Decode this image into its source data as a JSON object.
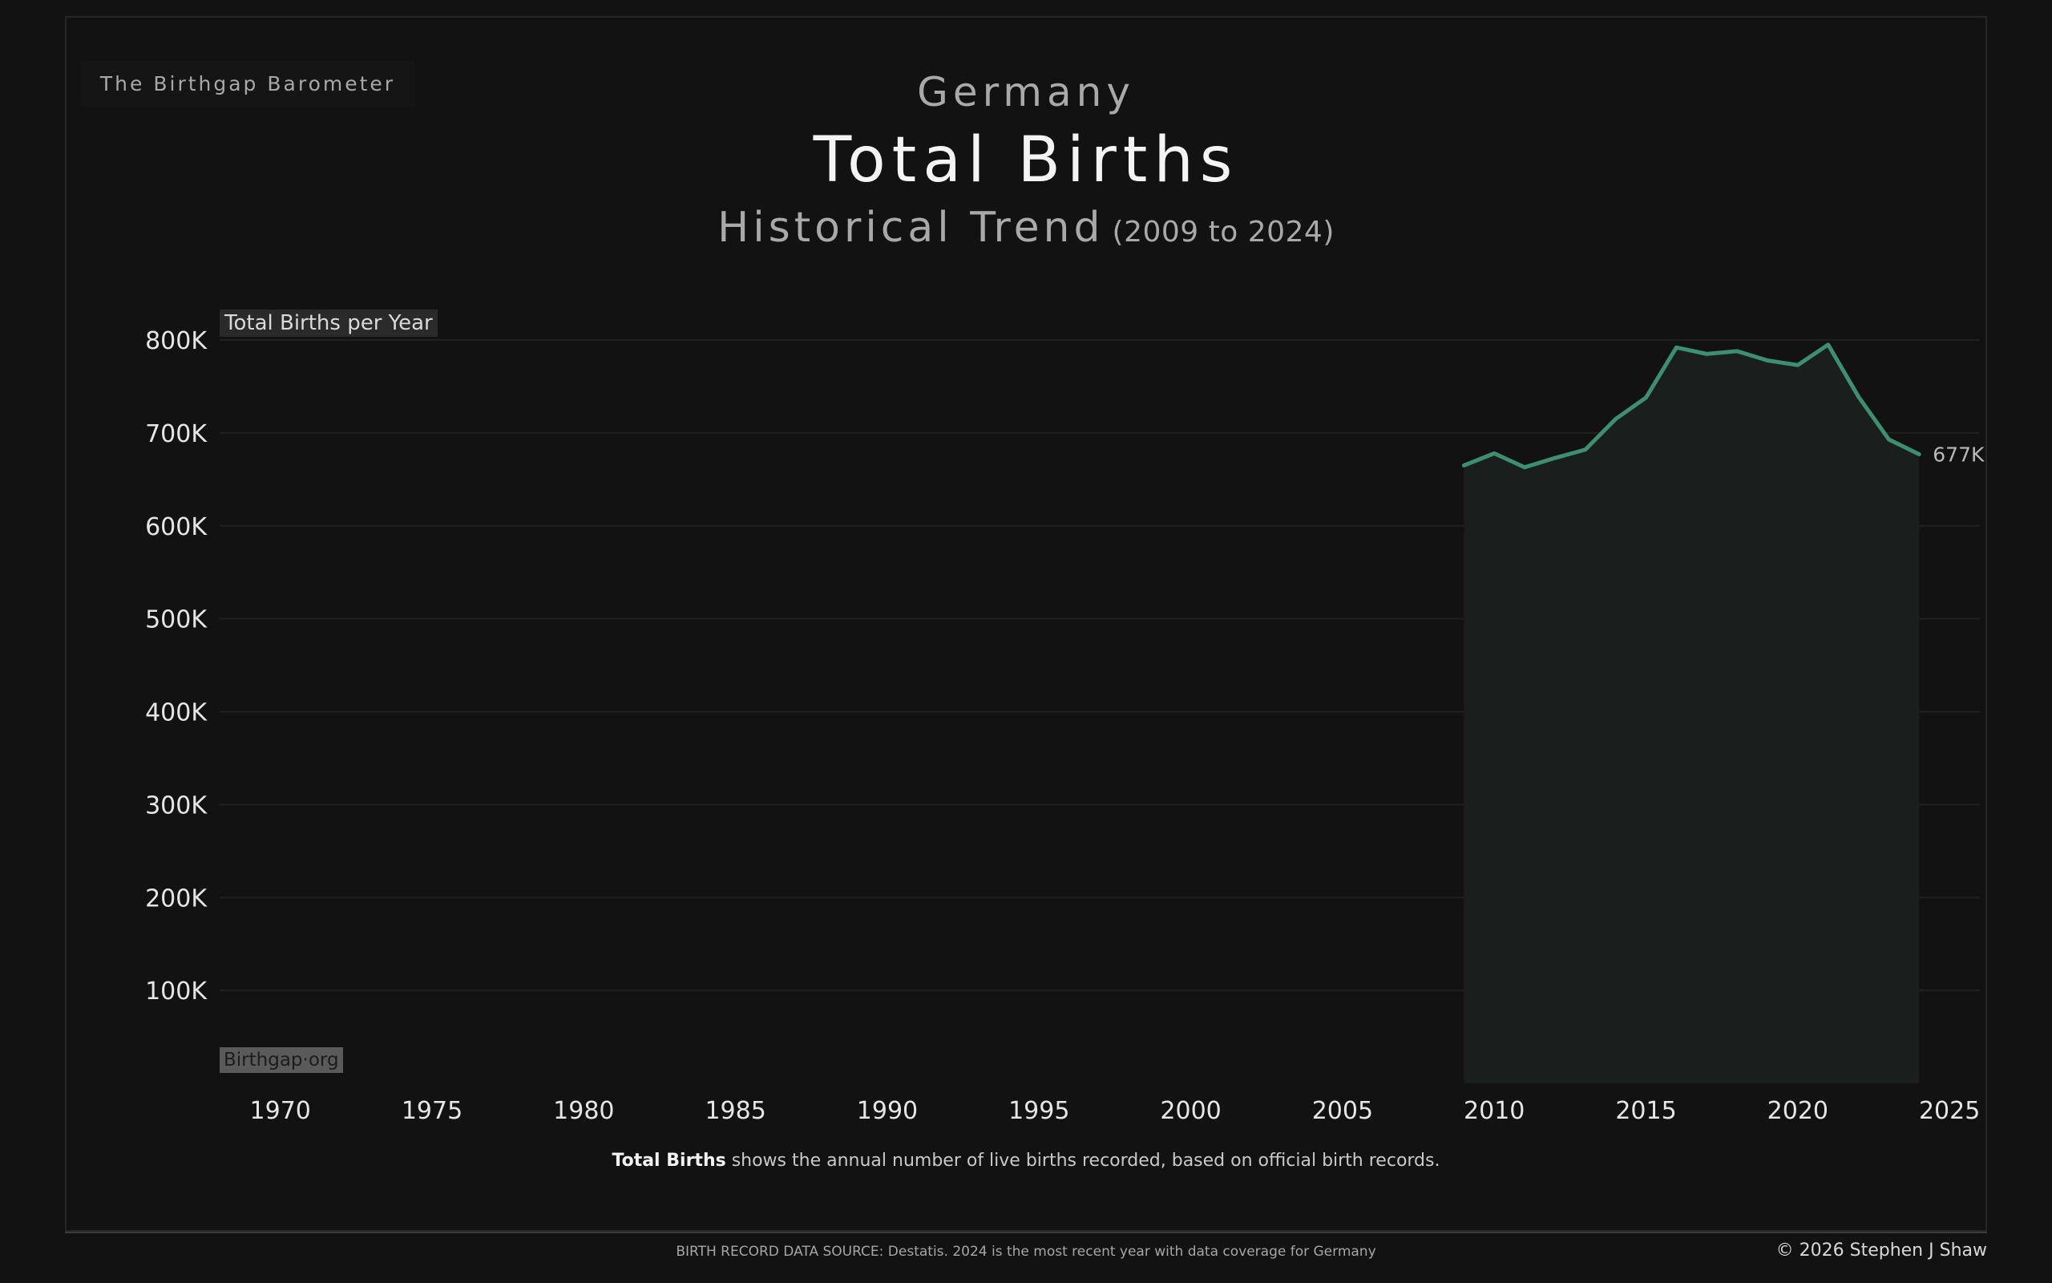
{
  "brand": "The Birthgap Barometer",
  "header": {
    "country": "Germany",
    "title": "Total Births",
    "subtitle": "Historical Trend",
    "range": "(2009 to 2024)"
  },
  "chart_data": {
    "type": "area",
    "ylabel": "Total Births per Year",
    "xlabel": "",
    "xlim": [
      1968,
      2026
    ],
    "ylim": [
      0,
      800000
    ],
    "yticks": [
      100000,
      200000,
      300000,
      400000,
      500000,
      600000,
      700000,
      800000
    ],
    "ytick_labels": [
      "100K",
      "200K",
      "300K",
      "400K",
      "500K",
      "600K",
      "700K",
      "800K"
    ],
    "xticks": [
      1970,
      1975,
      1980,
      1985,
      1990,
      1995,
      2000,
      2005,
      2010,
      2015,
      2020,
      2025
    ],
    "xtick_labels": [
      "1970",
      "1975",
      "1980",
      "1985",
      "1990",
      "1995",
      "2000",
      "2005",
      "2010",
      "2015",
      "2020",
      "2025"
    ],
    "grid": true,
    "line_color": "#3d8f6f",
    "series": [
      {
        "x": [
          2009,
          2010,
          2011,
          2012,
          2013,
          2014,
          2015,
          2016,
          2017,
          2018,
          2019,
          2020,
          2021,
          2022,
          2023,
          2024
        ],
        "values": [
          665000,
          678000,
          663000,
          673000,
          682000,
          715000,
          738000,
          792000,
          785000,
          788000,
          778000,
          773000,
          795000,
          739000,
          693000,
          677000
        ]
      }
    ],
    "end_label": "677K"
  },
  "watermark": "Birthgap·org",
  "caption": {
    "bold": "Total Births",
    "rest": " shows the annual number of live births recorded, based on official birth records."
  },
  "footer": {
    "source": "BIRTH RECORD DATA SOURCE: Destatis. 2024 is the most recent year with data coverage for Germany",
    "copyright": "© 2026 Stephen J Shaw"
  }
}
